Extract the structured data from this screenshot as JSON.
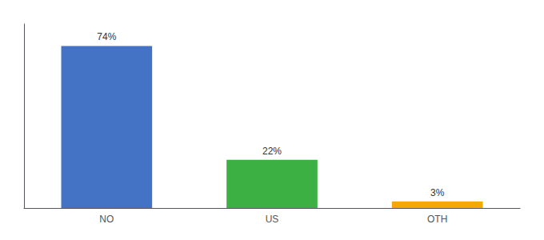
{
  "chart_data": {
    "type": "bar",
    "categories": [
      "NO",
      "US",
      "OTH"
    ],
    "values": [
      74,
      22,
      3
    ],
    "value_labels": [
      "74%",
      "22%",
      "3%"
    ],
    "data_labels": true,
    "colors": [
      "#4472c4",
      "#3cb043",
      "#f5a800"
    ],
    "ylim": [
      0,
      84
    ],
    "tick_labels": "x",
    "grid": false
  }
}
